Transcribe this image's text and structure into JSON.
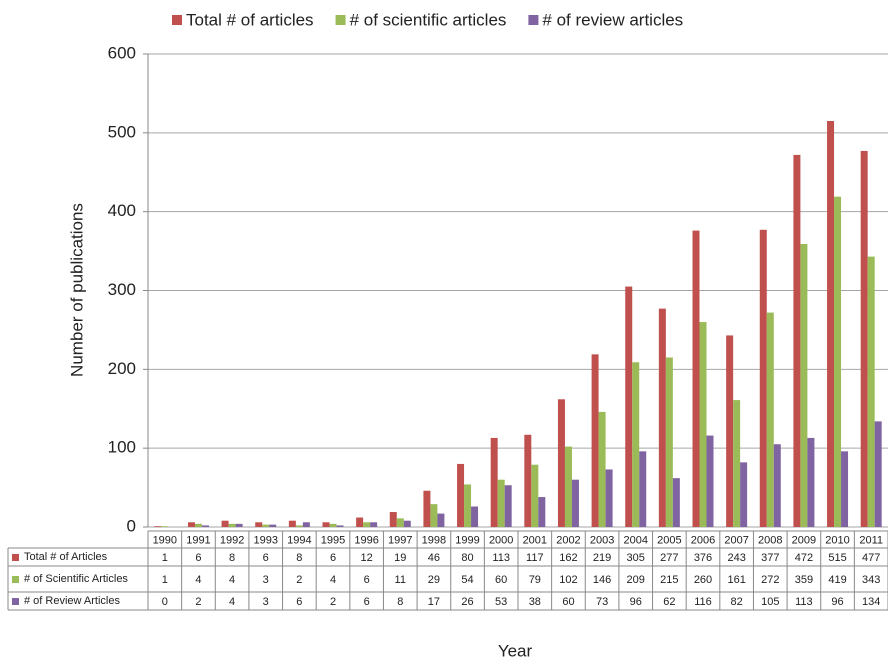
{
  "chart_data": {
    "type": "bar",
    "x_label": "Year",
    "y_label": "Number of publications",
    "categories": [
      "1990",
      "1991",
      "1992",
      "1993",
      "1994",
      "1995",
      "1996",
      "1997",
      "1998",
      "1999",
      "2000",
      "2001",
      "2002",
      "2003",
      "2004",
      "2005",
      "2006",
      "2007",
      "2008",
      "2009",
      "2010",
      "2011"
    ],
    "series": [
      {
        "name": "Total # of articles",
        "table_name": "Total # of Articles",
        "color": "#c0504d",
        "values": [
          1,
          6,
          8,
          6,
          8,
          6,
          12,
          19,
          46,
          80,
          113,
          117,
          162,
          219,
          305,
          277,
          376,
          243,
          377,
          472,
          515,
          477
        ]
      },
      {
        "name": "# of scientific articles",
        "table_name": "# of Scientific Articles",
        "color": "#9bbb59",
        "values": [
          1,
          4,
          4,
          3,
          2,
          4,
          6,
          11,
          29,
          54,
          60,
          79,
          102,
          146,
          209,
          215,
          260,
          161,
          272,
          359,
          419,
          343
        ]
      },
      {
        "name": "# of review articles",
        "table_name": "# of Review Articles",
        "color": "#8064a2",
        "values": [
          0,
          2,
          4,
          3,
          6,
          2,
          6,
          8,
          17,
          26,
          53,
          38,
          60,
          73,
          96,
          62,
          116,
          82,
          105,
          113,
          96,
          134
        ]
      }
    ],
    "ylim": [
      0,
      600
    ],
    "yticks": [
      0,
      100,
      200,
      300,
      400,
      500,
      600
    ],
    "grid": true,
    "legend": "top"
  }
}
